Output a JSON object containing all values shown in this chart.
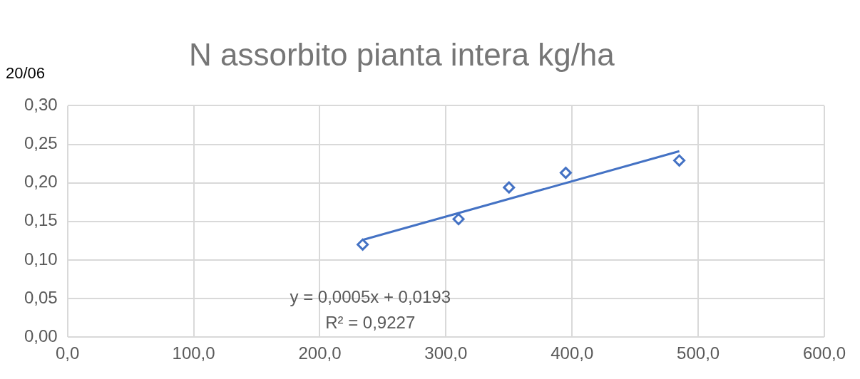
{
  "chart_data": {
    "type": "scatter",
    "title": "N assorbito pianta intera kg/ha",
    "ylabel": "20/06",
    "series": [
      {
        "type": "scatter",
        "color": "#4472c4",
        "x": [
          234,
          310,
          350,
          395,
          485
        ],
        "values": [
          0.12,
          0.153,
          0.194,
          0.213,
          0.229
        ],
        "marker": "diamond"
      },
      {
        "type": "line",
        "color": "#4472c4",
        "x": [
          234,
          485
        ],
        "values": [
          0.126,
          0.241
        ],
        "marker": "none",
        "line_style": "solid"
      }
    ],
    "xlim": [
      0,
      600
    ],
    "xticks": [
      {
        "value": 0,
        "label": "0,0"
      },
      {
        "value": 100,
        "label": "100,0"
      },
      {
        "value": 200,
        "label": "200,0"
      },
      {
        "value": 300,
        "label": "300,0"
      },
      {
        "value": 400,
        "label": "400,0"
      },
      {
        "value": 500,
        "label": "500,0"
      },
      {
        "value": 600,
        "label": "600,0"
      }
    ],
    "ylim": [
      0,
      0.3
    ],
    "yticks": [
      {
        "value": 0,
        "label": "0,00"
      },
      {
        "value": 0.05,
        "label": "0,05"
      },
      {
        "value": 0.1,
        "label": "0,10"
      },
      {
        "value": 0.15,
        "label": "0,15"
      },
      {
        "value": 0.2,
        "label": "0,20"
      },
      {
        "value": 0.25,
        "label": "0,25"
      },
      {
        "value": 0.3,
        "label": "0,30"
      }
    ],
    "grid": true,
    "legend": false,
    "annotations": [
      "y = 0,0005x + 0,0193",
      "R² = 0,9227"
    ]
  }
}
